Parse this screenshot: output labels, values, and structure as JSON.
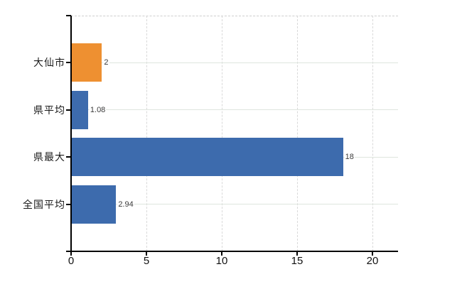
{
  "chart_data": {
    "type": "bar",
    "orientation": "horizontal",
    "title": "",
    "categories": [
      "大仙市",
      "県平均",
      "県最大",
      "全国平均"
    ],
    "values": [
      2,
      1.08,
      18,
      2.94
    ],
    "value_labels": [
      "2",
      "1.08",
      "18",
      "2.94"
    ],
    "bar_colors": [
      "#ee9031",
      "#3d6bad",
      "#3d6bad",
      "#3d6bad"
    ],
    "x_ticks": [
      "0",
      "5",
      "10",
      "15",
      "20"
    ],
    "x_tick_values": [
      0,
      5,
      10,
      15,
      20
    ],
    "xlim": [
      0,
      20
    ],
    "grid": true,
    "legend_position": "none",
    "background": "#ffffff",
    "axis_color": "#000000",
    "h_gridline_color": "#dfe5de",
    "v_gridline_color": "#d9d9d9",
    "top_border_color": "#cfcfcf",
    "value_label_color": "#3a3a3a",
    "tick_label_color": "#111111"
  }
}
